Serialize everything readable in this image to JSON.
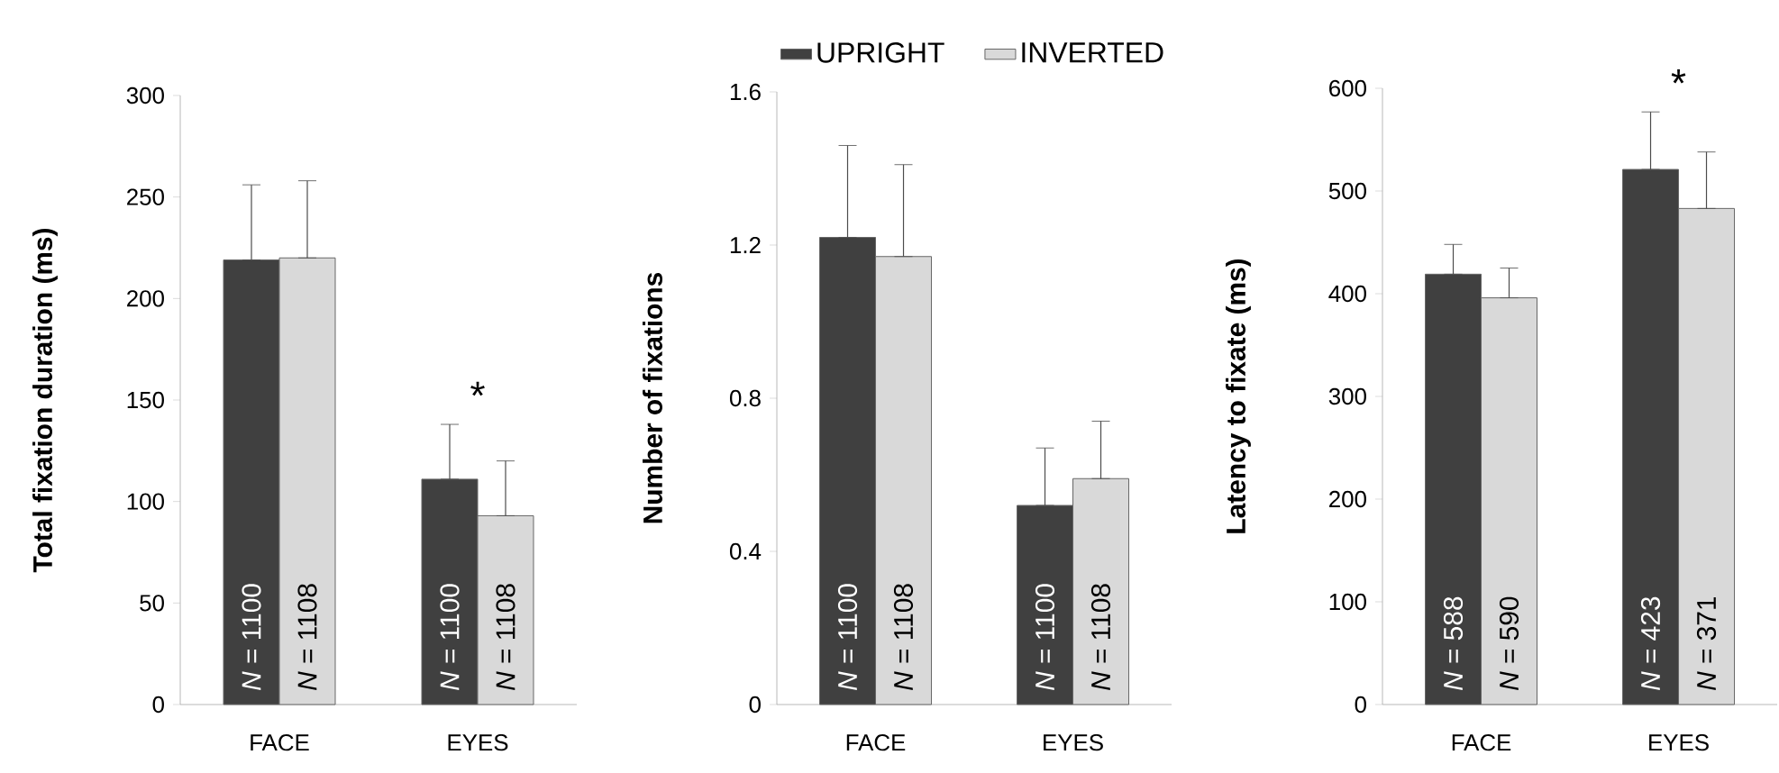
{
  "chart_data": [
    {
      "type": "bar",
      "ylabel": "Total fixation duration (ms)",
      "categories": [
        "FACE",
        "EYES"
      ],
      "ylim": [
        0,
        300
      ],
      "yticks": [
        0,
        50,
        100,
        150,
        200,
        250,
        300
      ],
      "series": [
        {
          "color": "#404040",
          "values": [
            219,
            111
          ],
          "errors": [
            [
              219,
              256
            ],
            [
              111,
              138
            ]
          ]
        },
        {
          "color": "#d9d9d9",
          "values": [
            220,
            93
          ],
          "errors": [
            [
              220,
              258
            ],
            [
              93,
              120
            ]
          ]
        }
      ],
      "annotations": [
        "*N* = 1100",
        "*N* = 1100",
        "*N* = 1108",
        "*N* = 1108",
        "*"
      ]
    },
    {
      "type": "bar",
      "ylabel": "Number of fixations",
      "categories": [
        "FACE",
        "EYES"
      ],
      "ylim": [
        0,
        1.6
      ],
      "yticks": [
        0,
        0.4,
        0.8,
        1.2,
        1.6
      ],
      "legend": "top",
      "series": [
        {
          "name": "UPRIGHT",
          "color": "#404040",
          "values": [
            1.22,
            0.52
          ],
          "errors": [
            [
              1.22,
              1.46
            ],
            [
              0.52,
              0.67
            ]
          ]
        },
        {
          "name": "INVERTED",
          "color": "#d9d9d9",
          "values": [
            1.17,
            0.59
          ],
          "errors": [
            [
              1.17,
              1.41
            ],
            [
              0.59,
              0.74
            ]
          ]
        }
      ],
      "annotations": [
        "*N* = 1100",
        "*N* = 1100",
        "*N* = 1108",
        "*N* = 1108"
      ]
    },
    {
      "type": "bar",
      "ylabel": "Latency to fixate (ms)",
      "categories": [
        "FACE",
        "EYES"
      ],
      "ylim": [
        0,
        600
      ],
      "yticks": [
        0,
        100,
        200,
        300,
        400,
        500,
        600
      ],
      "series": [
        {
          "color": "#404040",
          "values": [
            419,
            521
          ],
          "errors": [
            [
              419,
              448
            ],
            [
              521,
              577
            ]
          ]
        },
        {
          "color": "#d9d9d9",
          "values": [
            396,
            483
          ],
          "errors": [
            [
              396,
              425
            ],
            [
              483,
              538
            ]
          ]
        }
      ],
      "annotations": [
        "*N* = 588",
        "*N* = 423",
        "*N* = 590",
        "*N* = 371",
        "*"
      ]
    }
  ]
}
